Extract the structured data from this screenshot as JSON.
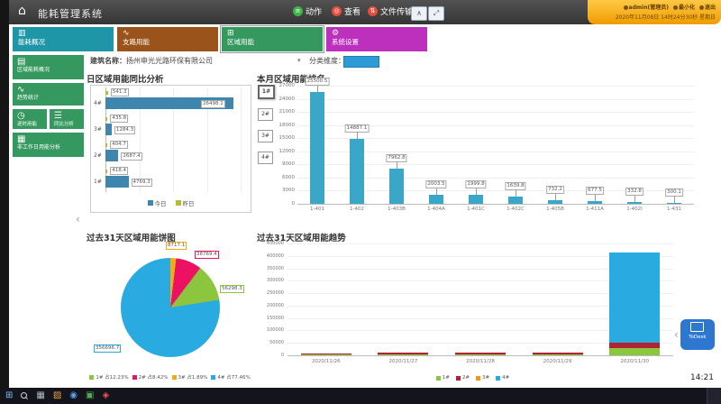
{
  "window": {
    "title": "能耗管理系统",
    "toolbar": {
      "action": "动作",
      "view": "查看",
      "file_transfer": "文件传输"
    },
    "user_badge": {
      "username": "admin(管理员)",
      "minimize": "最小化",
      "logout": "退出",
      "datetime": "2020年11月08日 14时24分30秒 星期日"
    }
  },
  "tabs": [
    {
      "label": "能耗概况",
      "color": "#1e96a8",
      "selected": false
    },
    {
      "label": "支路用能",
      "color": "#9a531a",
      "selected": false
    },
    {
      "label": "区域用能",
      "color": "#35995f",
      "selected": true
    },
    {
      "label": "系统设置",
      "color": "#bd2fbd",
      "selected": false
    }
  ],
  "sidebar": {
    "items": [
      {
        "label": "区域能耗概况"
      },
      {
        "label": "趋势统计"
      },
      {
        "label": "逐时用能"
      },
      {
        "label": "同比分析"
      },
      {
        "label": "非工作日用能分析"
      }
    ]
  },
  "filters": {
    "building_label": "建筑名称：",
    "building_value": "扬州申光光路环保有限公司",
    "category_label": "分类维度：",
    "category_value": ""
  },
  "chart_data": [
    {
      "id": "daily-comparison",
      "type": "bar",
      "orientation": "horizontal",
      "title": "日区域用能同比分析",
      "categories": [
        "1#",
        "2#",
        "3#",
        "4#"
      ],
      "series": [
        {
          "name": "今日",
          "color": "#3e86ae",
          "values": [
            4769.3,
            2687.4,
            1284.3,
            26498.1
          ]
        },
        {
          "name": "昨日",
          "color": "#b5bd2f",
          "values": [
            418.4,
            404.7,
            435.8,
            541.3
          ]
        }
      ],
      "xlim": [
        0,
        28000
      ],
      "legend_position": "bottom"
    },
    {
      "id": "monthly-ranking",
      "type": "bar",
      "title": "本月区域用能排名",
      "selector": [
        "1#",
        "2#",
        "3#",
        "4#"
      ],
      "categories": [
        "1-401",
        "1-402",
        "1-403B",
        "1-404A",
        "1-401C",
        "1-402C",
        "1-405B",
        "1-411A",
        "1-402I",
        "1-431"
      ],
      "values": [
        25500.5,
        14887.1,
        7962.8,
        2003.5,
        1999.8,
        1639.8,
        732.2,
        677.5,
        332.8,
        300.1
      ],
      "color": "#3aa6c8",
      "ylim": [
        0,
        27000
      ],
      "ytick_step": 3000
    },
    {
      "id": "pie-31days",
      "type": "pie",
      "title": "过去31天区域用能饼图",
      "slices": [
        {
          "name": "3#",
          "value": 8717.1,
          "pct": "1.89%",
          "color": "#f5ad0e"
        },
        {
          "name": "2#",
          "value": 38769.4,
          "pct": "8.42%",
          "color": "#ed1164"
        },
        {
          "name": "1#",
          "value": 56298.3,
          "pct": "12.23%",
          "color": "#8cc63e"
        },
        {
          "name": "4#",
          "value": 356696.7,
          "pct": "77.46%",
          "color": "#29abe2"
        }
      ],
      "legend_labels": [
        "1# 占12.23%",
        "2# 占8.42%",
        "3# 占1.89%",
        "4# 占77.46%"
      ],
      "legend_position": "bottom"
    },
    {
      "id": "trend-31days",
      "type": "bar",
      "stacked": true,
      "title": "过去31天区域用能趋势",
      "categories": [
        "2020/11/26",
        "2020/11/27",
        "2020/11/28",
        "2020/11/29",
        "2020/11/30"
      ],
      "series": [
        {
          "name": "1#",
          "color": "#8cc63e",
          "values": [
            400,
            500,
            600,
            500,
            30000
          ]
        },
        {
          "name": "2#",
          "color": "#b02334",
          "values": [
            300,
            7500,
            7600,
            7400,
            20000
          ]
        },
        {
          "name": "3#",
          "color": "#f7941d",
          "values": [
            0,
            0,
            0,
            0,
            0
          ]
        },
        {
          "name": "4#",
          "color": "#29abe2",
          "values": [
            0,
            0,
            0,
            0,
            362000
          ]
        }
      ],
      "ylim": [
        0,
        450000
      ],
      "ytick_step": 50000
    }
  ],
  "todesk_label": "ToDesk",
  "taskbar": {
    "clock": "14:21"
  }
}
